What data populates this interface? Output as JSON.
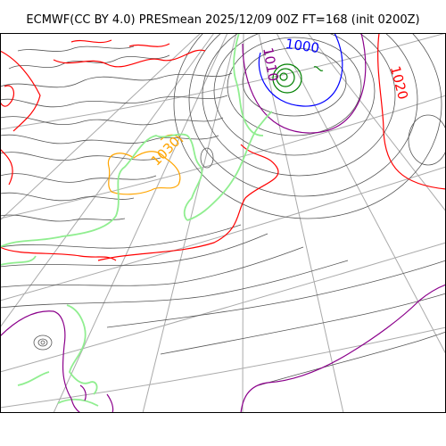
{
  "title": "ECMWF(CC BY 4.0) PRESmean 2025/12/09 00Z FT=168 (init 0200Z)",
  "product": {
    "source": "ECMWF",
    "license": "CC BY 4.0",
    "field": "PRESmean",
    "valid": "2025/12/09 00Z",
    "forecast_time": "FT=168",
    "init": "0200Z"
  },
  "contour_labels": [
    {
      "text": "1000",
      "color": "#0000ff"
    },
    {
      "text": "1010",
      "color": "#8b008b"
    },
    {
      "text": "1020",
      "color": "#ff0000"
    },
    {
      "text": "1030",
      "color": "#ffa500"
    }
  ],
  "colors": {
    "thin_isobar": "#555555",
    "graticule": "#aaaaaa",
    "coast": "#90ee90",
    "low_center": "#008000",
    "high_center": "#ffa500",
    "isobar_1000": "#0000ff",
    "isobar_1010": "#8b008b",
    "isobar_1020": "#ff0000",
    "isobar_1030": "#ffa500"
  }
}
